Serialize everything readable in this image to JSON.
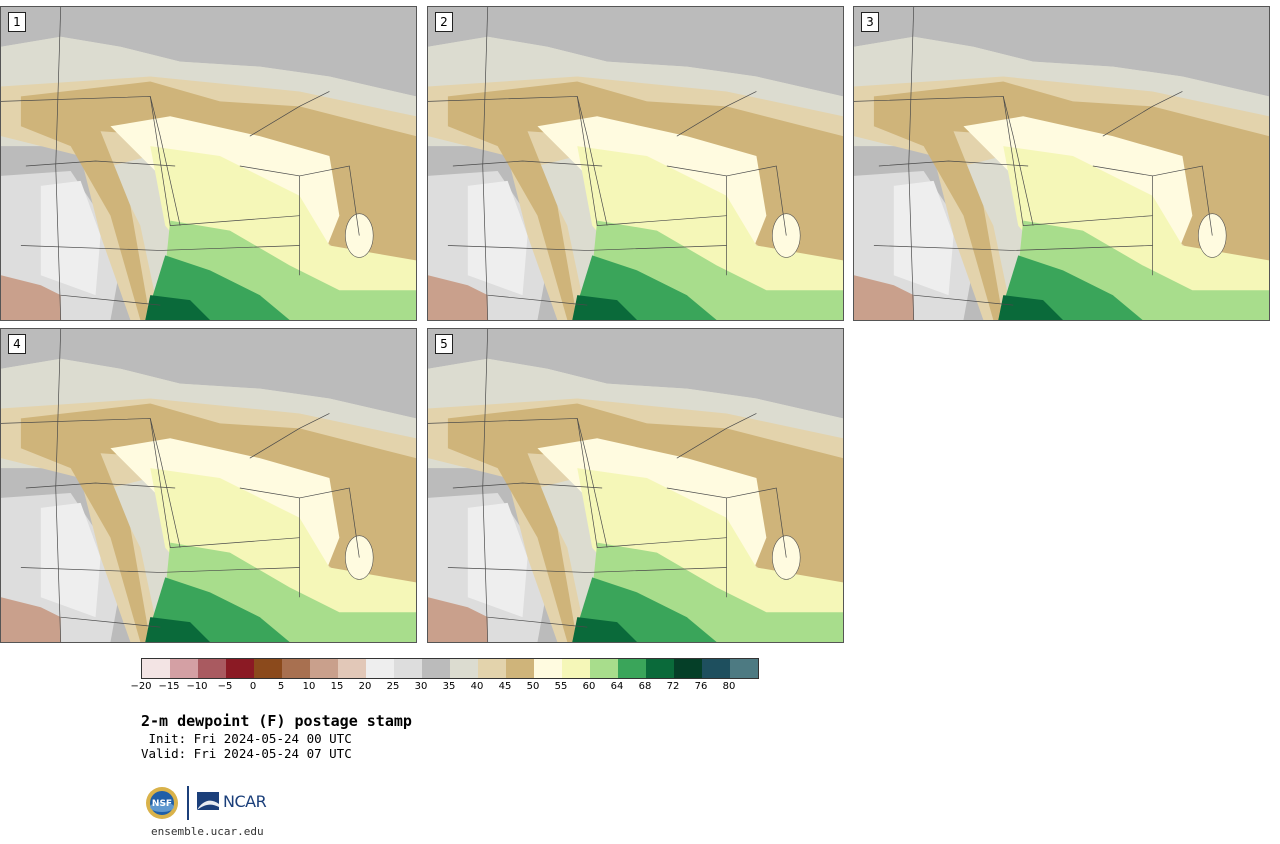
{
  "panels": [
    {
      "label": "1"
    },
    {
      "label": "2"
    },
    {
      "label": "3"
    },
    {
      "label": "4"
    },
    {
      "label": "5"
    }
  ],
  "colorbar": {
    "colors": [
      "#f3e4e4",
      "#d4a0a4",
      "#a95a60",
      "#8b1a24",
      "#8b4a1c",
      "#a87050",
      "#c9a08c",
      "#e2c8b8",
      "#eeeeee",
      "#dddddd",
      "#bbbbbb",
      "#dcdcd0",
      "#e3d3ac",
      "#cfb47a",
      "#fffbe0",
      "#f5f7b8",
      "#a8dd8c",
      "#3aa55a",
      "#0a6a3a",
      "#053f28",
      "#1e4f5e",
      "#4d7a82"
    ],
    "ticks": [
      "−20",
      "−15",
      "−10",
      "−5",
      "0",
      "5",
      "10",
      "15",
      "20",
      "25",
      "30",
      "35",
      "40",
      "45",
      "50",
      "55",
      "60",
      "64",
      "68",
      "72",
      "76",
      "80"
    ]
  },
  "title": "2-m dewpoint (F) postage stamp",
  "init": " Init: Fri 2024-05-24 00 UTC",
  "valid": "Valid: Fri 2024-05-24 07 UTC",
  "logos": {
    "ncar": "NCAR"
  },
  "site": "ensemble.ucar.edu"
}
